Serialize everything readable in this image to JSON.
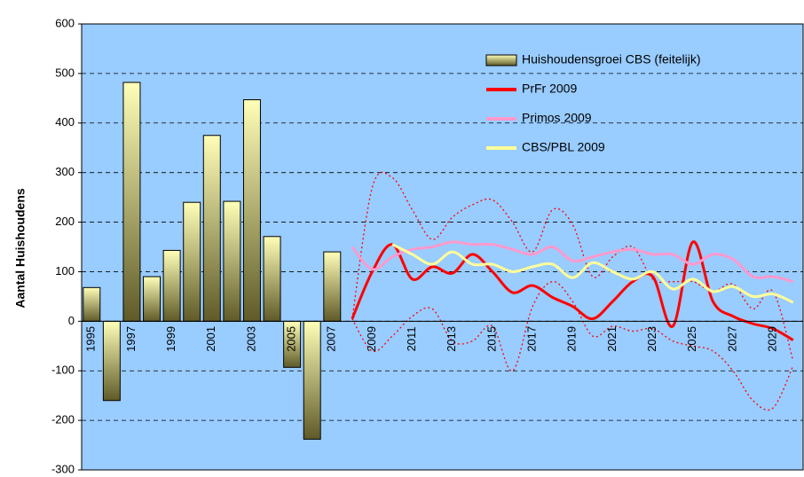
{
  "chart_data": {
    "type": "combo",
    "y_label": "Aantal Huishoudens",
    "categories": [
      "1995",
      null,
      "1997",
      null,
      "1999",
      null,
      "2001",
      null,
      "2003",
      null,
      "2005",
      null,
      "2007",
      null,
      "2009",
      null,
      "2011",
      null,
      "2013",
      null,
      "2015",
      null,
      "2017",
      null,
      "2019",
      null,
      "2021",
      null,
      "2023",
      null,
      "2025",
      null,
      "2027",
      null,
      "2029",
      null
    ],
    "ylim": [
      -300,
      600
    ],
    "yticks": [
      -300,
      -200,
      -100,
      0,
      100,
      200,
      300,
      400,
      500,
      600
    ],
    "grid": true,
    "background": "#99ccff",
    "legend": "top-right",
    "series": [
      {
        "name": "Huishoudensgroei CBS (feitelijk)",
        "type": "bar",
        "color": "#ffffb8",
        "gradient_to": "#5f5a28",
        "values": [
          68,
          -160,
          482,
          90,
          143,
          240,
          375,
          242,
          447,
          171,
          -93,
          -238,
          140,
          null,
          null,
          null,
          null,
          null,
          null,
          null,
          null,
          null,
          null,
          null,
          null,
          null,
          null,
          null,
          null,
          null,
          null,
          null,
          null,
          null,
          null,
          null
        ]
      },
      {
        "name": "PrFr 2009",
        "type": "line",
        "color": "#ff0000",
        "width": 3,
        "values": [
          null,
          null,
          null,
          null,
          null,
          null,
          null,
          null,
          null,
          null,
          null,
          null,
          null,
          5,
          100,
          155,
          85,
          110,
          97,
          135,
          100,
          58,
          72,
          48,
          30,
          5,
          40,
          80,
          90,
          -10,
          160,
          40,
          10,
          -5,
          -15,
          -38
        ]
      },
      {
        "name": "Primos 2009",
        "type": "line",
        "color": "#ff99cc",
        "width": 3,
        "values": [
          null,
          null,
          null,
          null,
          null,
          null,
          null,
          null,
          null,
          null,
          null,
          null,
          null,
          150,
          105,
          130,
          145,
          150,
          160,
          155,
          155,
          145,
          135,
          150,
          122,
          130,
          140,
          145,
          135,
          135,
          115,
          135,
          125,
          90,
          90,
          80
        ]
      },
      {
        "name": "CBS/PBL 2009",
        "type": "line",
        "color": "#ffff99",
        "width": 3,
        "values": [
          null,
          null,
          null,
          null,
          null,
          null,
          null,
          null,
          null,
          null,
          null,
          null,
          null,
          null,
          null,
          155,
          135,
          115,
          140,
          115,
          115,
          100,
          110,
          115,
          88,
          118,
          100,
          85,
          100,
          65,
          85,
          60,
          70,
          50,
          55,
          38
        ]
      },
      {
        "type": "line",
        "color": "#ff0000",
        "width": 1.3,
        "dashed": true,
        "values": [
          null,
          null,
          null,
          null,
          null,
          null,
          null,
          null,
          null,
          null,
          null,
          null,
          null,
          5,
          270,
          290,
          225,
          165,
          210,
          235,
          245,
          200,
          140,
          225,
          195,
          90,
          130,
          150,
          85,
          80,
          80,
          60,
          75,
          25,
          60,
          -80
        ]
      },
      {
        "type": "line",
        "color": "#ff0000",
        "width": 1.3,
        "dashed": true,
        "values": [
          null,
          null,
          null,
          null,
          null,
          null,
          null,
          null,
          null,
          null,
          null,
          null,
          null,
          5,
          -60,
          -30,
          10,
          25,
          -40,
          -40,
          -10,
          -100,
          30,
          80,
          40,
          -30,
          -10,
          -20,
          -15,
          -40,
          -50,
          -60,
          -100,
          -160,
          -175,
          -90
        ]
      }
    ]
  }
}
